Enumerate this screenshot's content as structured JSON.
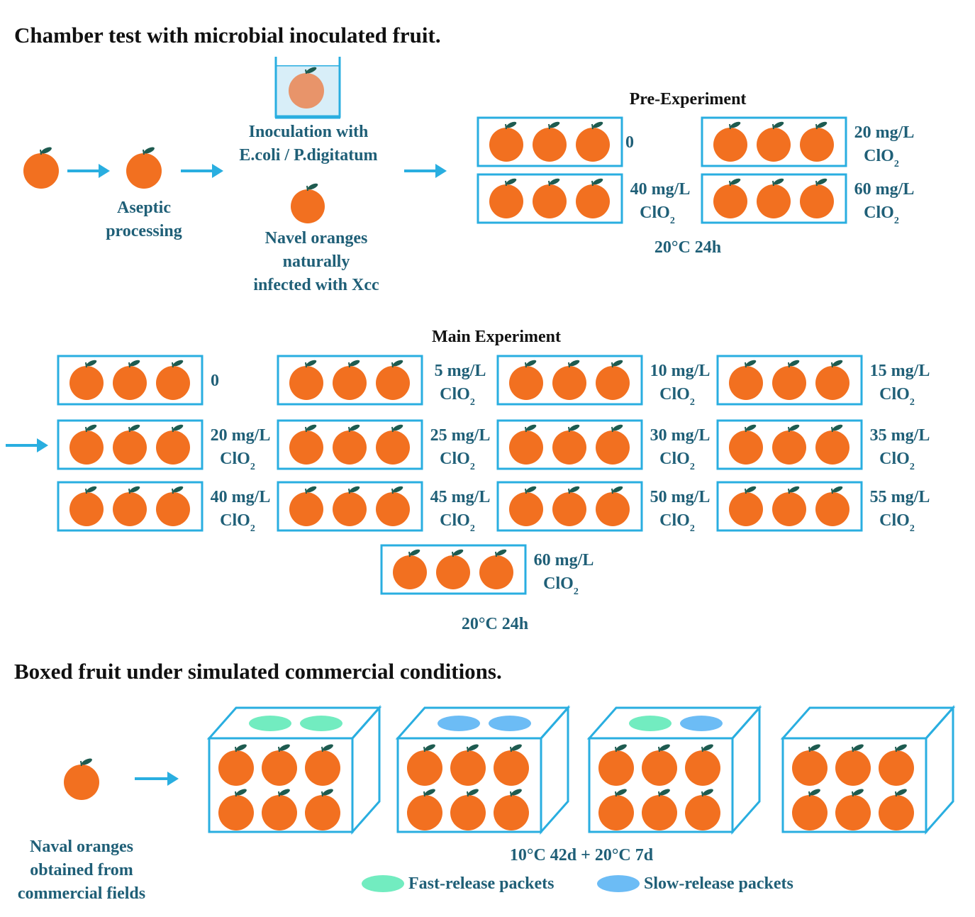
{
  "colors": {
    "frame": "#29aee0",
    "arrow": "#29aee0",
    "orange": "#f27020",
    "leaf": "#1e5b50",
    "label": "#1f5f77",
    "fast_packet": "#72ecc0",
    "slow_packet": "#6cbcf5"
  },
  "section1": {
    "title": "Chamber test with microbial inoculated fruit.",
    "aseptic": [
      "Aseptic",
      "processing"
    ],
    "inoculation": [
      "Inoculation with",
      "E.coli / P.digitatum"
    ],
    "navel": [
      "Navel oranges",
      "naturally",
      "infected with Xcc"
    ]
  },
  "pre": {
    "title": "Pre-Experiment",
    "conditions": "20°C 24h",
    "boxes": [
      {
        "line1": "0",
        "line2": ""
      },
      {
        "line1": "20 mg/L",
        "line2": "ClO"
      },
      {
        "line1": "40 mg/L",
        "line2": "ClO"
      },
      {
        "line1": "60 mg/L",
        "line2": "ClO"
      }
    ]
  },
  "main": {
    "title": "Main Experiment",
    "conditions": "20°C 24h",
    "boxes": [
      {
        "line1": "0",
        "line2": ""
      },
      {
        "line1": "5 mg/L",
        "line2": "ClO"
      },
      {
        "line1": "10 mg/L",
        "line2": "ClO"
      },
      {
        "line1": "15 mg/L",
        "line2": "ClO"
      },
      {
        "line1": "20 mg/L",
        "line2": "ClO"
      },
      {
        "line1": "25 mg/L",
        "line2": "ClO"
      },
      {
        "line1": "30 mg/L",
        "line2": "ClO"
      },
      {
        "line1": "35 mg/L",
        "line2": "ClO"
      },
      {
        "line1": "40 mg/L",
        "line2": "ClO"
      },
      {
        "line1": "45 mg/L",
        "line2": "ClO"
      },
      {
        "line1": "50 mg/L",
        "line2": "ClO"
      },
      {
        "line1": "55 mg/L",
        "line2": "ClO"
      },
      {
        "line1": "60 mg/L",
        "line2": "ClO"
      }
    ]
  },
  "subscript": "2",
  "section2": {
    "title": "Boxed fruit under simulated commercial conditions.",
    "source": [
      "Naval oranges",
      "obtained from",
      "commercial fields"
    ],
    "conditions": "10°C 42d + 20°C 7d",
    "boxes": [
      {
        "packets": [
          "fast",
          "fast"
        ]
      },
      {
        "packets": [
          "slow",
          "slow"
        ]
      },
      {
        "packets": [
          "fast",
          "slow"
        ]
      },
      {
        "packets": []
      }
    ],
    "legend": {
      "fast": "Fast-release packets",
      "slow": "Slow-release packets"
    }
  }
}
